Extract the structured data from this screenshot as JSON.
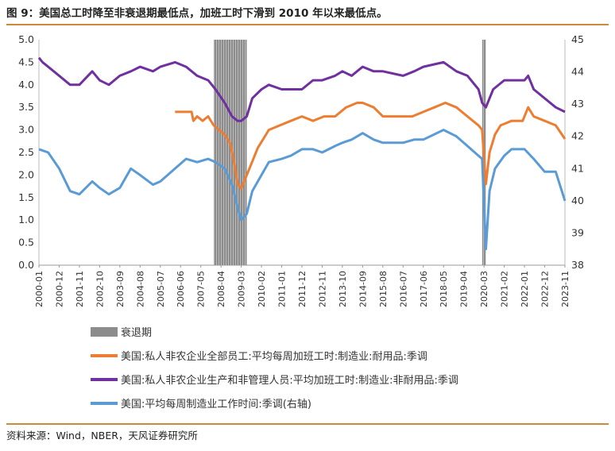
{
  "figure": {
    "title": "图 9：美国总工时降至非衰退期最低点，加班工时下滑到 2010 年以来最低点。",
    "source": "资料来源：Wind，NBER，天风证券研究所"
  },
  "colors": {
    "recession": "#8c8c8c",
    "orange": "#ed7d31",
    "purple": "#7030a0",
    "blue": "#5b9bd5"
  },
  "chart_data": {
    "type": "line",
    "title": "",
    "x_range": [
      "2000-01",
      "2023-11"
    ],
    "x_tick_labels": [
      "2000-01",
      "2000-12",
      "2001-11",
      "2002-10",
      "2003-09",
      "2004-08",
      "2005-07",
      "2006-06",
      "2007-05",
      "2008-04",
      "2009-03",
      "2010-02",
      "2011-01",
      "2011-12",
      "2012-11",
      "2013-10",
      "2014-09",
      "2015-08",
      "2016-07",
      "2017-06",
      "2018-05",
      "2019-04",
      "2020-03",
      "2021-02",
      "2022-01",
      "2022-12",
      "2023-11"
    ],
    "y_left": {
      "min": 0.0,
      "max": 5.0,
      "ticks": [
        "0.0",
        "0.5",
        "1.0",
        "1.5",
        "2.0",
        "2.5",
        "3.0",
        "3.5",
        "4.0",
        "4.5",
        "5.0"
      ]
    },
    "y_right": {
      "min": 38,
      "max": 45,
      "ticks": [
        "38",
        "39",
        "40",
        "41",
        "42",
        "43",
        "44",
        "45"
      ]
    },
    "recessions": [
      {
        "start": "2007-12",
        "end": "2009-06"
      },
      {
        "start": "2020-02",
        "end": "2020-04"
      }
    ],
    "series": [
      {
        "name": "衰退期",
        "kind": "recession"
      },
      {
        "name": "美国:私人非农企业全部员工:平均每周加班工时:制造业:耐用品:季调",
        "axis": "left",
        "points": [
          [
            "2006-03",
            3.4
          ],
          [
            "2006-12",
            3.4
          ],
          [
            "2007-01",
            3.2
          ],
          [
            "2007-03",
            3.3
          ],
          [
            "2007-06",
            3.2
          ],
          [
            "2007-09",
            3.3
          ],
          [
            "2007-12",
            3.1
          ],
          [
            "2008-03",
            3.0
          ],
          [
            "2008-06",
            2.9
          ],
          [
            "2008-09",
            2.7
          ],
          [
            "2008-11",
            2.3
          ],
          [
            "2009-01",
            1.8
          ],
          [
            "2009-03",
            1.7
          ],
          [
            "2009-06",
            2.0
          ],
          [
            "2009-09",
            2.3
          ],
          [
            "2009-12",
            2.6
          ],
          [
            "2010-03",
            2.8
          ],
          [
            "2010-06",
            3.0
          ],
          [
            "2010-12",
            3.1
          ],
          [
            "2011-06",
            3.2
          ],
          [
            "2011-12",
            3.3
          ],
          [
            "2012-06",
            3.2
          ],
          [
            "2012-12",
            3.3
          ],
          [
            "2013-06",
            3.3
          ],
          [
            "2013-12",
            3.5
          ],
          [
            "2014-06",
            3.6
          ],
          [
            "2014-09",
            3.6
          ],
          [
            "2015-03",
            3.5
          ],
          [
            "2015-08",
            3.3
          ],
          [
            "2016-06",
            3.3
          ],
          [
            "2016-12",
            3.3
          ],
          [
            "2017-06",
            3.4
          ],
          [
            "2017-12",
            3.5
          ],
          [
            "2018-06",
            3.6
          ],
          [
            "2018-12",
            3.5
          ],
          [
            "2019-06",
            3.3
          ],
          [
            "2019-12",
            3.1
          ],
          [
            "2020-02",
            3.0
          ],
          [
            "2020-04",
            1.8
          ],
          [
            "2020-06",
            2.5
          ],
          [
            "2020-09",
            2.9
          ],
          [
            "2020-12",
            3.1
          ],
          [
            "2021-06",
            3.2
          ],
          [
            "2021-12",
            3.2
          ],
          [
            "2022-03",
            3.5
          ],
          [
            "2022-06",
            3.3
          ],
          [
            "2022-12",
            3.2
          ],
          [
            "2023-06",
            3.1
          ],
          [
            "2023-11",
            2.8
          ]
        ]
      },
      {
        "name": "美国:私人非农企业生产和非管理人员:平均加班工时:制造业:非耐用品:季调",
        "axis": "left",
        "points": [
          [
            "2000-01",
            4.6
          ],
          [
            "2000-03",
            4.5
          ],
          [
            "2000-06",
            4.4
          ],
          [
            "2000-12",
            4.2
          ],
          [
            "2001-06",
            4.0
          ],
          [
            "2001-11",
            4.0
          ],
          [
            "2002-06",
            4.3
          ],
          [
            "2002-10",
            4.1
          ],
          [
            "2003-03",
            4.0
          ],
          [
            "2003-09",
            4.2
          ],
          [
            "2004-03",
            4.3
          ],
          [
            "2004-08",
            4.4
          ],
          [
            "2005-03",
            4.3
          ],
          [
            "2005-07",
            4.4
          ],
          [
            "2006-03",
            4.5
          ],
          [
            "2006-09",
            4.4
          ],
          [
            "2007-03",
            4.2
          ],
          [
            "2007-09",
            4.1
          ],
          [
            "2008-01",
            3.9
          ],
          [
            "2008-06",
            3.6
          ],
          [
            "2008-10",
            3.3
          ],
          [
            "2009-01",
            3.2
          ],
          [
            "2009-03",
            3.2
          ],
          [
            "2009-06",
            3.3
          ],
          [
            "2009-09",
            3.7
          ],
          [
            "2010-02",
            3.9
          ],
          [
            "2010-06",
            4.0
          ],
          [
            "2011-01",
            3.9
          ],
          [
            "2011-06",
            3.9
          ],
          [
            "2011-12",
            3.9
          ],
          [
            "2012-06",
            4.1
          ],
          [
            "2012-11",
            4.1
          ],
          [
            "2013-06",
            4.2
          ],
          [
            "2013-10",
            4.3
          ],
          [
            "2014-03",
            4.2
          ],
          [
            "2014-09",
            4.4
          ],
          [
            "2015-03",
            4.3
          ],
          [
            "2015-08",
            4.3
          ],
          [
            "2016-07",
            4.2
          ],
          [
            "2017-01",
            4.3
          ],
          [
            "2017-06",
            4.4
          ],
          [
            "2018-05",
            4.5
          ],
          [
            "2018-12",
            4.3
          ],
          [
            "2019-06",
            4.2
          ],
          [
            "2019-12",
            3.9
          ],
          [
            "2020-02",
            3.6
          ],
          [
            "2020-04",
            3.5
          ],
          [
            "2020-08",
            3.9
          ],
          [
            "2021-02",
            4.1
          ],
          [
            "2021-06",
            4.1
          ],
          [
            "2022-01",
            4.1
          ],
          [
            "2022-03",
            4.2
          ],
          [
            "2022-06",
            3.9
          ],
          [
            "2022-12",
            3.7
          ],
          [
            "2023-06",
            3.5
          ],
          [
            "2023-11",
            3.4
          ]
        ]
      },
      {
        "name": "美国:平均每周制造业工作时间:季调(右轴)",
        "axis": "right",
        "points": [
          [
            "2000-01",
            41.6
          ],
          [
            "2000-06",
            41.5
          ],
          [
            "2000-12",
            41.0
          ],
          [
            "2001-06",
            40.3
          ],
          [
            "2001-11",
            40.2
          ],
          [
            "2002-06",
            40.6
          ],
          [
            "2002-10",
            40.4
          ],
          [
            "2003-03",
            40.2
          ],
          [
            "2003-09",
            40.4
          ],
          [
            "2004-03",
            41.0
          ],
          [
            "2004-08",
            40.8
          ],
          [
            "2005-03",
            40.5
          ],
          [
            "2005-07",
            40.6
          ],
          [
            "2006-03",
            41.0
          ],
          [
            "2006-09",
            41.3
          ],
          [
            "2007-03",
            41.2
          ],
          [
            "2007-09",
            41.3
          ],
          [
            "2008-01",
            41.2
          ],
          [
            "2008-06",
            41.0
          ],
          [
            "2008-10",
            40.5
          ],
          [
            "2009-01",
            39.8
          ],
          [
            "2009-03",
            39.4
          ],
          [
            "2009-06",
            39.6
          ],
          [
            "2009-09",
            40.3
          ],
          [
            "2010-02",
            40.8
          ],
          [
            "2010-06",
            41.2
          ],
          [
            "2011-01",
            41.3
          ],
          [
            "2011-06",
            41.4
          ],
          [
            "2011-12",
            41.6
          ],
          [
            "2012-06",
            41.6
          ],
          [
            "2012-11",
            41.5
          ],
          [
            "2013-06",
            41.7
          ],
          [
            "2013-10",
            41.8
          ],
          [
            "2014-03",
            41.9
          ],
          [
            "2014-09",
            42.1
          ],
          [
            "2015-03",
            41.9
          ],
          [
            "2015-08",
            41.8
          ],
          [
            "2016-07",
            41.8
          ],
          [
            "2017-01",
            41.9
          ],
          [
            "2017-06",
            41.9
          ],
          [
            "2018-05",
            42.2
          ],
          [
            "2018-12",
            42.0
          ],
          [
            "2019-06",
            41.7
          ],
          [
            "2019-12",
            41.4
          ],
          [
            "2020-02",
            41.3
          ],
          [
            "2020-04",
            38.5
          ],
          [
            "2020-06",
            40.3
          ],
          [
            "2020-09",
            41.0
          ],
          [
            "2021-02",
            41.4
          ],
          [
            "2021-06",
            41.6
          ],
          [
            "2022-01",
            41.6
          ],
          [
            "2022-06",
            41.3
          ],
          [
            "2022-12",
            40.9
          ],
          [
            "2023-06",
            40.9
          ],
          [
            "2023-11",
            40.0
          ]
        ]
      }
    ]
  }
}
